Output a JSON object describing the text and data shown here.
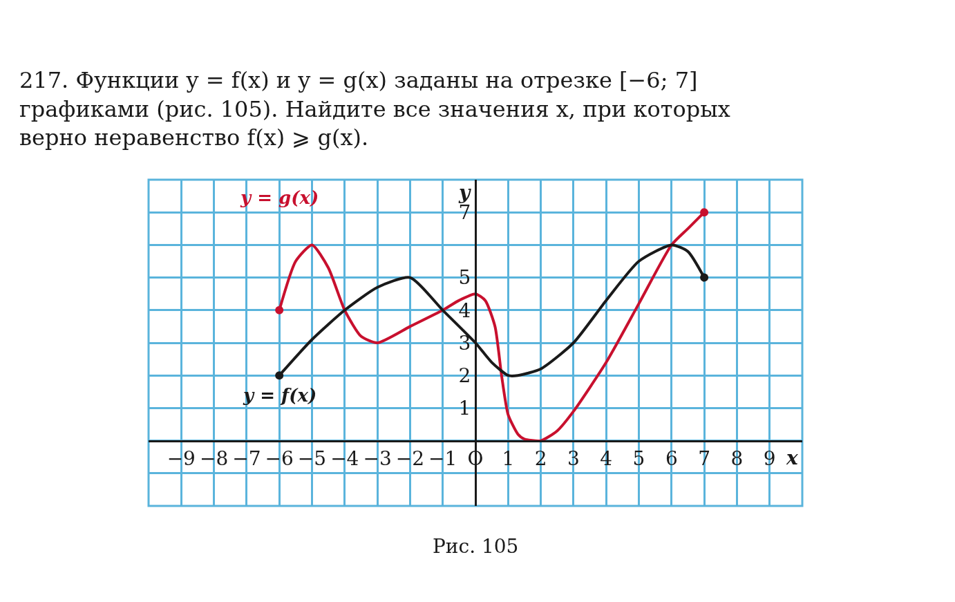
{
  "chart_data": {
    "type": "line",
    "title": "217. Функции y = f(x) и y = g(x) заданы на отрезке [−6; 7] графиками (рис. 105). Найдите все значения x, при которых верно неравенство f(x) ⩾ g(x).",
    "xlabel": "x",
    "ylabel": "y",
    "annotations": [
      "Рис. 105"
    ],
    "series": [
      {
        "name": "y = g(x)",
        "color": "#c8102e",
        "x": [
          -6,
          -5.5,
          -5,
          -4.5,
          -4,
          -3.5,
          -3,
          -2,
          -1,
          -0.5,
          0,
          0.3,
          0.6,
          0.8,
          1,
          1.3,
          1.5,
          2,
          2.5,
          3,
          4,
          5,
          6,
          6.5,
          7
        ],
        "values": [
          4,
          5.5,
          6,
          5.3,
          4,
          3.2,
          3,
          3.5,
          4,
          4.3,
          4.5,
          4.3,
          3.5,
          2,
          0.8,
          0.2,
          0.05,
          0,
          0.3,
          0.9,
          2.4,
          4.2,
          6,
          6.5,
          7
        ]
      },
      {
        "name": "y = f(x)",
        "color": "#1a1a1a",
        "x": [
          -6,
          -5,
          -4,
          -3,
          -2,
          -1,
          0,
          0.5,
          1,
          1.3,
          2,
          3,
          4,
          5,
          6,
          6.5,
          7
        ],
        "values": [
          2,
          3.1,
          4,
          4.7,
          5,
          4,
          3,
          2.4,
          2,
          2,
          2.2,
          3,
          4.3,
          5.5,
          6,
          5.8,
          5
        ]
      },
      {
        "type": "scatter",
        "color": "#c8102e",
        "x": [
          -6,
          7
        ],
        "values": [
          4,
          7
        ]
      },
      {
        "type": "scatter",
        "color": "#1a1a1a",
        "x": [
          -6,
          7
        ],
        "values": [
          2,
          5
        ]
      }
    ],
    "line_style": "solid",
    "grid": true,
    "legend": false,
    "xlim": [
      -10,
      10
    ],
    "ylim": [
      -2,
      8
    ],
    "xticks": [
      {
        "value": -10,
        "label": null
      },
      -9,
      -8,
      -7,
      -6,
      -5,
      -4,
      -3,
      -2,
      -1,
      {
        "value": 0,
        "label": "O"
      },
      1,
      2,
      3,
      4,
      5,
      6,
      7,
      8,
      9,
      {
        "value": 10,
        "label": null
      }
    ],
    "yticks": [
      {
        "value": -2,
        "label": null
      },
      {
        "value": -1,
        "label": null
      },
      {
        "value": 0,
        "label": null
      },
      1,
      2,
      3,
      4,
      5,
      {
        "value": 6,
        "label": null
      },
      7,
      {
        "value": 8,
        "label": null
      }
    ]
  }
}
